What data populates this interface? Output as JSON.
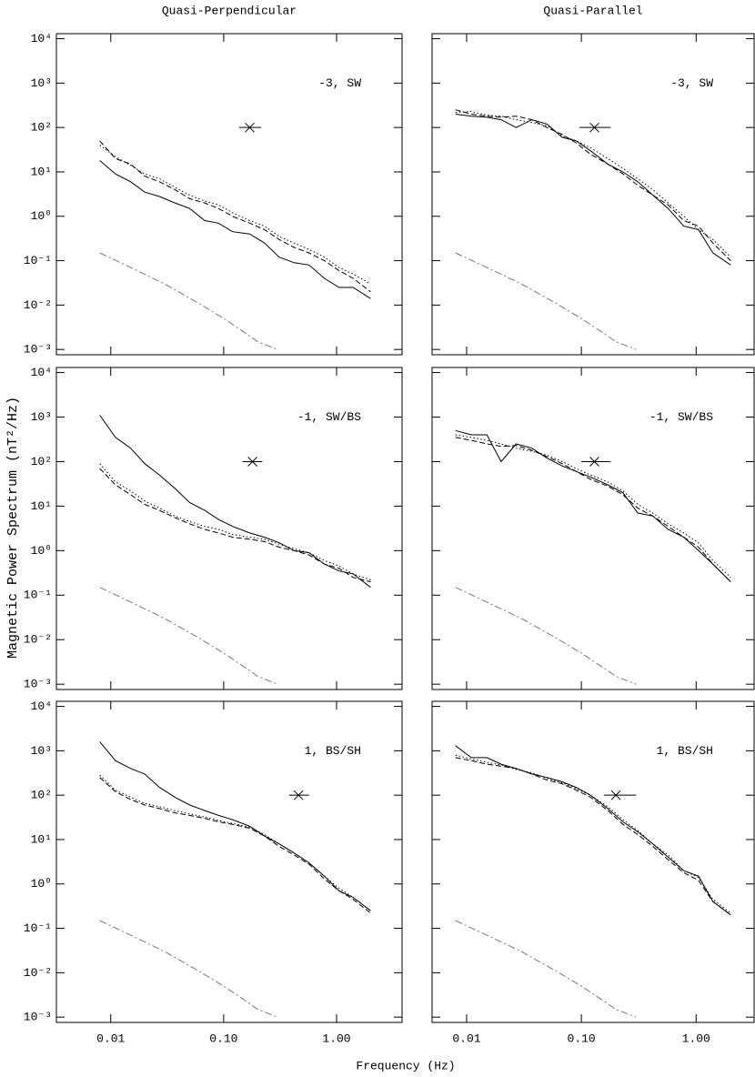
{
  "column_titles": [
    "Quasi-Perpendicular",
    "Quasi-Parallel"
  ],
  "y_label": "Magnetic Power Spectrum (nT²/Hz)",
  "x_label": "Frequency (Hz)",
  "chart_data": [
    {
      "type": "line",
      "label": "-3, SW",
      "log_x": true,
      "log_y": true,
      "xlim": [
        0.0033,
        3.8
      ],
      "ylim": [
        0.00076,
        13000
      ],
      "xticks": [
        0.01,
        {
          "value": 0.1,
          "label": "0.10"
        },
        {
          "value": 1,
          "label": "1.00"
        }
      ],
      "yticks": [
        {
          "value": 0.001,
          "label": "10⁻³"
        },
        {
          "value": 0.01,
          "label": "10⁻²"
        },
        {
          "value": 0.1,
          "label": "10⁻¹"
        },
        {
          "value": 1,
          "label": "10⁰"
        },
        {
          "value": 10,
          "label": "10¹"
        },
        {
          "value": 100,
          "label": "10²"
        },
        {
          "value": 1000,
          "label": "10³"
        },
        {
          "value": 10000,
          "label": "10⁴"
        }
      ],
      "x": [
        0.008,
        0.011,
        0.015,
        0.02,
        0.027,
        0.037,
        0.05,
        0.068,
        0.09,
        0.12,
        0.17,
        0.23,
        0.31,
        0.42,
        0.57,
        0.78,
        1.05,
        1.4,
        2.0
      ],
      "series": [
        {
          "color": "#000",
          "dash": "solid",
          "values": [
            18,
            9,
            6,
            3.5,
            2.8,
            2.0,
            1.5,
            0.8,
            0.7,
            0.45,
            0.4,
            0.25,
            0.12,
            0.09,
            0.08,
            0.04,
            0.025,
            0.025,
            0.014
          ]
        },
        {
          "color": "#000",
          "dash": "dashed",
          "values": [
            50,
            20,
            15,
            8,
            6,
            4,
            2.5,
            2,
            1.5,
            1,
            0.7,
            0.5,
            0.3,
            0.2,
            0.15,
            0.1,
            0.06,
            0.04,
            0.02
          ]
        },
        {
          "color": "#000",
          "dash": "dotted",
          "values": [
            40,
            22,
            14,
            9,
            7,
            4.5,
            3,
            2.2,
            1.8,
            1.2,
            0.8,
            0.6,
            0.35,
            0.25,
            0.18,
            0.12,
            0.07,
            0.05,
            0.03
          ]
        }
      ],
      "model": {
        "color": "#777",
        "dash": "dashdot",
        "x": [
          0.008,
          0.015,
          0.03,
          0.06,
          0.1,
          0.15,
          0.2,
          0.3
        ],
        "values": [
          0.15,
          0.07,
          0.03,
          0.011,
          0.005,
          0.0025,
          0.0015,
          0.001
        ]
      },
      "marker": {
        "x": 0.17,
        "y": 100,
        "x_low": 0.137,
        "x_high": 0.214
      }
    },
    {
      "type": "line",
      "label": "-3, SW",
      "log_x": true,
      "log_y": true,
      "xlim": [
        0.005,
        3.2
      ],
      "ylim": [
        0.00076,
        13000
      ],
      "xticks": [
        0.01,
        {
          "value": 0.1,
          "label": "0.10"
        },
        {
          "value": 1,
          "label": "1.00"
        }
      ],
      "yticks": [
        {
          "value": 0.001,
          "label": "10⁻³"
        },
        {
          "value": 0.01,
          "label": "10⁻²"
        },
        {
          "value": 0.1,
          "label": "10⁻¹"
        },
        {
          "value": 1,
          "label": "10⁰"
        },
        {
          "value": 10,
          "label": "10¹"
        },
        {
          "value": 100,
          "label": "10²"
        },
        {
          "value": 1000,
          "label": "10³"
        },
        {
          "value": 10000,
          "label": "10⁴"
        }
      ],
      "x": [
        0.008,
        0.011,
        0.015,
        0.02,
        0.027,
        0.037,
        0.05,
        0.068,
        0.09,
        0.12,
        0.17,
        0.23,
        0.31,
        0.42,
        0.57,
        0.78,
        1.05,
        1.4,
        2.0
      ],
      "series": [
        {
          "color": "#000",
          "dash": "solid",
          "values": [
            200,
            180,
            170,
            150,
            100,
            150,
            120,
            60,
            50,
            30,
            15,
            10,
            6,
            3,
            1.5,
            0.6,
            0.5,
            0.15,
            0.08
          ]
        },
        {
          "color": "#000",
          "dash": "dashed",
          "values": [
            250,
            200,
            180,
            170,
            180,
            150,
            100,
            70,
            45,
            25,
            15,
            9,
            5,
            3,
            1.8,
            0.8,
            0.6,
            0.25,
            0.1
          ]
        },
        {
          "color": "#000",
          "dash": "dotted",
          "values": [
            220,
            230,
            190,
            180,
            150,
            130,
            110,
            65,
            50,
            35,
            20,
            12,
            7,
            4,
            2,
            1,
            0.5,
            0.3,
            0.12
          ]
        }
      ],
      "model": {
        "color": "#777",
        "dash": "dashdot",
        "x": [
          0.008,
          0.015,
          0.03,
          0.06,
          0.1,
          0.15,
          0.2,
          0.3
        ],
        "values": [
          0.15,
          0.07,
          0.03,
          0.011,
          0.005,
          0.0025,
          0.0015,
          0.001
        ]
      },
      "marker": {
        "x": 0.13,
        "y": 100,
        "x_low": 0.096,
        "x_high": 0.18
      }
    },
    {
      "type": "line",
      "label": "-1, SW/BS",
      "log_x": true,
      "log_y": true,
      "xlim": [
        0.0033,
        3.8
      ],
      "ylim": [
        0.00076,
        13000
      ],
      "xticks": [
        0.01,
        {
          "value": 0.1,
          "label": "0.10"
        },
        {
          "value": 1,
          "label": "1.00"
        }
      ],
      "yticks": [
        {
          "value": 0.001,
          "label": "10⁻³"
        },
        {
          "value": 0.01,
          "label": "10⁻²"
        },
        {
          "value": 0.1,
          "label": "10⁻¹"
        },
        {
          "value": 1,
          "label": "10⁰"
        },
        {
          "value": 10,
          "label": "10¹"
        },
        {
          "value": 100,
          "label": "10²"
        },
        {
          "value": 1000,
          "label": "10³"
        },
        {
          "value": 10000,
          "label": "10⁴"
        }
      ],
      "x": [
        0.008,
        0.011,
        0.015,
        0.02,
        0.027,
        0.037,
        0.05,
        0.068,
        0.09,
        0.12,
        0.17,
        0.23,
        0.31,
        0.42,
        0.57,
        0.78,
        1.05,
        1.4,
        2.0
      ],
      "series": [
        {
          "color": "#000",
          "dash": "solid",
          "values": [
            1100,
            350,
            200,
            90,
            50,
            25,
            12,
            8,
            5,
            3.5,
            2.5,
            2,
            1.5,
            1,
            0.9,
            0.5,
            0.35,
            0.3,
            0.15
          ]
        },
        {
          "color": "#000",
          "dash": "dashed",
          "values": [
            70,
            30,
            18,
            11,
            8,
            5.5,
            4,
            3,
            2.5,
            2,
            1.8,
            1.6,
            1.2,
            1,
            0.8,
            0.5,
            0.4,
            0.25,
            0.2
          ]
        },
        {
          "color": "#000",
          "dash": "dotted",
          "values": [
            90,
            35,
            22,
            13,
            9,
            6,
            4.5,
            3.5,
            3,
            2.3,
            2,
            1.8,
            1.4,
            1.1,
            0.9,
            0.6,
            0.45,
            0.3,
            0.22
          ]
        }
      ],
      "model": {
        "color": "#777",
        "dash": "dashdot",
        "x": [
          0.008,
          0.015,
          0.03,
          0.06,
          0.1,
          0.15,
          0.2,
          0.3
        ],
        "values": [
          0.15,
          0.07,
          0.03,
          0.011,
          0.005,
          0.0025,
          0.0015,
          0.001
        ]
      },
      "marker": {
        "x": 0.18,
        "y": 100,
        "x_low": 0.147,
        "x_high": 0.22
      }
    },
    {
      "type": "line",
      "label": "-1, SW/BS",
      "log_x": true,
      "log_y": true,
      "xlim": [
        0.005,
        3.2
      ],
      "ylim": [
        0.00076,
        13000
      ],
      "xticks": [
        0.01,
        {
          "value": 0.1,
          "label": "0.10"
        },
        {
          "value": 1,
          "label": "1.00"
        }
      ],
      "yticks": [
        {
          "value": 0.001,
          "label": "10⁻³"
        },
        {
          "value": 0.01,
          "label": "10⁻²"
        },
        {
          "value": 0.1,
          "label": "10⁻¹"
        },
        {
          "value": 1,
          "label": "10⁰"
        },
        {
          "value": 10,
          "label": "10¹"
        },
        {
          "value": 100,
          "label": "10²"
        },
        {
          "value": 1000,
          "label": "10³"
        },
        {
          "value": 10000,
          "label": "10⁴"
        }
      ],
      "x": [
        0.008,
        0.011,
        0.015,
        0.02,
        0.027,
        0.037,
        0.05,
        0.068,
        0.09,
        0.12,
        0.17,
        0.23,
        0.31,
        0.42,
        0.57,
        0.78,
        1.05,
        1.4,
        2.0
      ],
      "series": [
        {
          "color": "#000",
          "dash": "solid",
          "values": [
            500,
            400,
            400,
            100,
            250,
            200,
            120,
            80,
            60,
            45,
            30,
            20,
            7,
            6,
            3,
            2,
            1,
            0.5,
            0.2
          ]
        },
        {
          "color": "#000",
          "dash": "dashed",
          "values": [
            350,
            300,
            250,
            220,
            230,
            180,
            130,
            90,
            60,
            40,
            28,
            18,
            9,
            6,
            3.5,
            2,
            1.2,
            0.5,
            0.2
          ]
        },
        {
          "color": "#000",
          "dash": "dotted",
          "values": [
            400,
            350,
            300,
            250,
            200,
            170,
            140,
            100,
            70,
            50,
            35,
            22,
            11,
            7,
            4,
            2.5,
            1.5,
            0.6,
            0.25
          ]
        }
      ],
      "model": {
        "color": "#777",
        "dash": "dashdot",
        "x": [
          0.008,
          0.015,
          0.03,
          0.06,
          0.1,
          0.15,
          0.2,
          0.3
        ],
        "values": [
          0.15,
          0.07,
          0.03,
          0.011,
          0.005,
          0.0025,
          0.0015,
          0.001
        ]
      },
      "marker": {
        "x": 0.13,
        "y": 100,
        "x_low": 0.1,
        "x_high": 0.18
      }
    },
    {
      "type": "line",
      "label": "1, BS/SH",
      "log_x": true,
      "log_y": true,
      "xlim": [
        0.0033,
        3.8
      ],
      "ylim": [
        0.00076,
        13000
      ],
      "xticks": [
        0.01,
        {
          "value": 0.1,
          "label": "0.10"
        },
        {
          "value": 1,
          "label": "1.00"
        }
      ],
      "yticks": [
        {
          "value": 0.001,
          "label": "10⁻³"
        },
        {
          "value": 0.01,
          "label": "10⁻²"
        },
        {
          "value": 0.1,
          "label": "10⁻¹"
        },
        {
          "value": 1,
          "label": "10⁰"
        },
        {
          "value": 10,
          "label": "10¹"
        },
        {
          "value": 100,
          "label": "10²"
        },
        {
          "value": 1000,
          "label": "10³"
        },
        {
          "value": 10000,
          "label": "10⁴"
        }
      ],
      "x": [
        0.008,
        0.011,
        0.015,
        0.02,
        0.027,
        0.037,
        0.05,
        0.068,
        0.09,
        0.12,
        0.17,
        0.23,
        0.31,
        0.42,
        0.57,
        0.78,
        1.05,
        1.4,
        2.0
      ],
      "series": [
        {
          "color": "#000",
          "dash": "solid",
          "values": [
            1600,
            600,
            400,
            300,
            150,
            90,
            60,
            45,
            35,
            28,
            20,
            12,
            8,
            5,
            3,
            1.5,
            0.7,
            0.5,
            0.25
          ]
        },
        {
          "color": "#000",
          "dash": "dashed",
          "values": [
            250,
            120,
            80,
            60,
            50,
            40,
            35,
            30,
            25,
            22,
            18,
            12,
            7,
            4.5,
            2.8,
            1.3,
            0.7,
            0.45,
            0.22
          ]
        },
        {
          "color": "#000",
          "dash": "dotted",
          "values": [
            280,
            130,
            90,
            65,
            55,
            45,
            38,
            32,
            27,
            23,
            19,
            13,
            8,
            5,
            3,
            1.5,
            0.8,
            0.5,
            0.25
          ]
        }
      ],
      "model": {
        "color": "#777",
        "dash": "dashdot",
        "x": [
          0.008,
          0.015,
          0.03,
          0.06,
          0.1,
          0.15,
          0.2,
          0.3
        ],
        "values": [
          0.15,
          0.07,
          0.03,
          0.011,
          0.005,
          0.0025,
          0.0015,
          0.001
        ]
      },
      "marker": {
        "x": 0.46,
        "y": 100,
        "x_low": 0.38,
        "x_high": 0.57
      }
    },
    {
      "type": "line",
      "label": "1, BS/SH",
      "log_x": true,
      "log_y": true,
      "xlim": [
        0.005,
        3.2
      ],
      "ylim": [
        0.00076,
        13000
      ],
      "xticks": [
        0.01,
        {
          "value": 0.1,
          "label": "0.10"
        },
        {
          "value": 1,
          "label": "1.00"
        }
      ],
      "yticks": [
        {
          "value": 0.001,
          "label": "10⁻³"
        },
        {
          "value": 0.01,
          "label": "10⁻²"
        },
        {
          "value": 0.1,
          "label": "10⁻¹"
        },
        {
          "value": 1,
          "label": "10⁰"
        },
        {
          "value": 10,
          "label": "10¹"
        },
        {
          "value": 100,
          "label": "10²"
        },
        {
          "value": 1000,
          "label": "10³"
        },
        {
          "value": 10000,
          "label": "10⁴"
        }
      ],
      "x": [
        0.008,
        0.011,
        0.015,
        0.02,
        0.027,
        0.037,
        0.05,
        0.068,
        0.09,
        0.12,
        0.17,
        0.23,
        0.31,
        0.42,
        0.57,
        0.78,
        1.05,
        1.4,
        2.0
      ],
      "series": [
        {
          "color": "#000",
          "dash": "solid",
          "values": [
            1300,
            700,
            700,
            500,
            400,
            300,
            250,
            200,
            150,
            100,
            50,
            25,
            15,
            8,
            4,
            2,
            1.5,
            0.4,
            0.2
          ]
        },
        {
          "color": "#000",
          "dash": "dashed",
          "values": [
            700,
            600,
            500,
            450,
            400,
            300,
            220,
            180,
            130,
            90,
            45,
            22,
            13,
            7,
            3.5,
            1.8,
            1.2,
            0.4,
            0.2
          ]
        },
        {
          "color": "#000",
          "dash": "dotted",
          "values": [
            800,
            650,
            550,
            480,
            380,
            320,
            240,
            190,
            140,
            100,
            55,
            28,
            16,
            8,
            4.5,
            2,
            1.4,
            0.45,
            0.22
          ]
        }
      ],
      "model": {
        "color": "#777",
        "dash": "dashdot",
        "x": [
          0.008,
          0.015,
          0.03,
          0.06,
          0.1,
          0.15,
          0.2,
          0.3
        ],
        "values": [
          0.15,
          0.07,
          0.03,
          0.011,
          0.005,
          0.0025,
          0.0015,
          0.001
        ]
      },
      "marker": {
        "x": 0.2,
        "y": 100,
        "x_low": 0.157,
        "x_high": 0.3
      }
    }
  ]
}
